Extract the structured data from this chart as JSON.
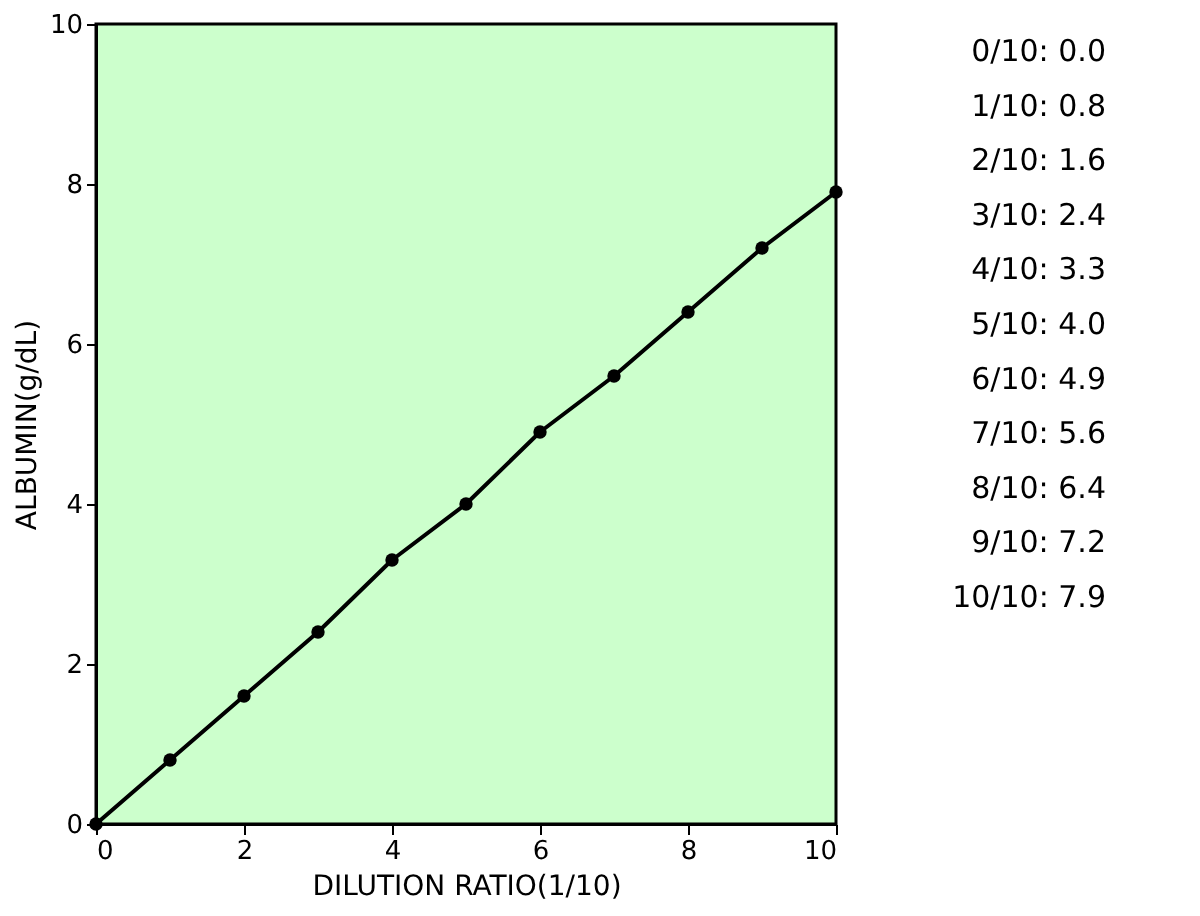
{
  "chart_data": {
    "type": "line",
    "xlabel": "DILUTION RATIO(1/10)",
    "ylabel": "ALBUMIN(g/dL)",
    "x": [
      0,
      1,
      2,
      3,
      4,
      5,
      6,
      7,
      8,
      9,
      10
    ],
    "series": [
      {
        "color": "#000000",
        "values": [
          0.0,
          0.8,
          1.6,
          2.4,
          3.3,
          4.0,
          4.9,
          5.6,
          6.4,
          7.2,
          7.9
        ]
      }
    ],
    "annotations": [
      "0/10:  0.0",
      "1/10:  0.8",
      "2/10:  1.6",
      "3/10:  2.4",
      "4/10:  3.3",
      "5/10:  4.0",
      "6/10:  4.9",
      "7/10:  5.6",
      "8/10:  6.4",
      "9/10:  7.2",
      "10/10:  7.9"
    ],
    "xlim": [
      0,
      10
    ],
    "ylim": [
      0,
      10
    ],
    "xticks": [
      0,
      2,
      4,
      6,
      8,
      10
    ],
    "yticks": [
      0,
      2,
      4,
      6,
      8,
      10
    ],
    "marker": "circle",
    "line_style": "solid"
  }
}
